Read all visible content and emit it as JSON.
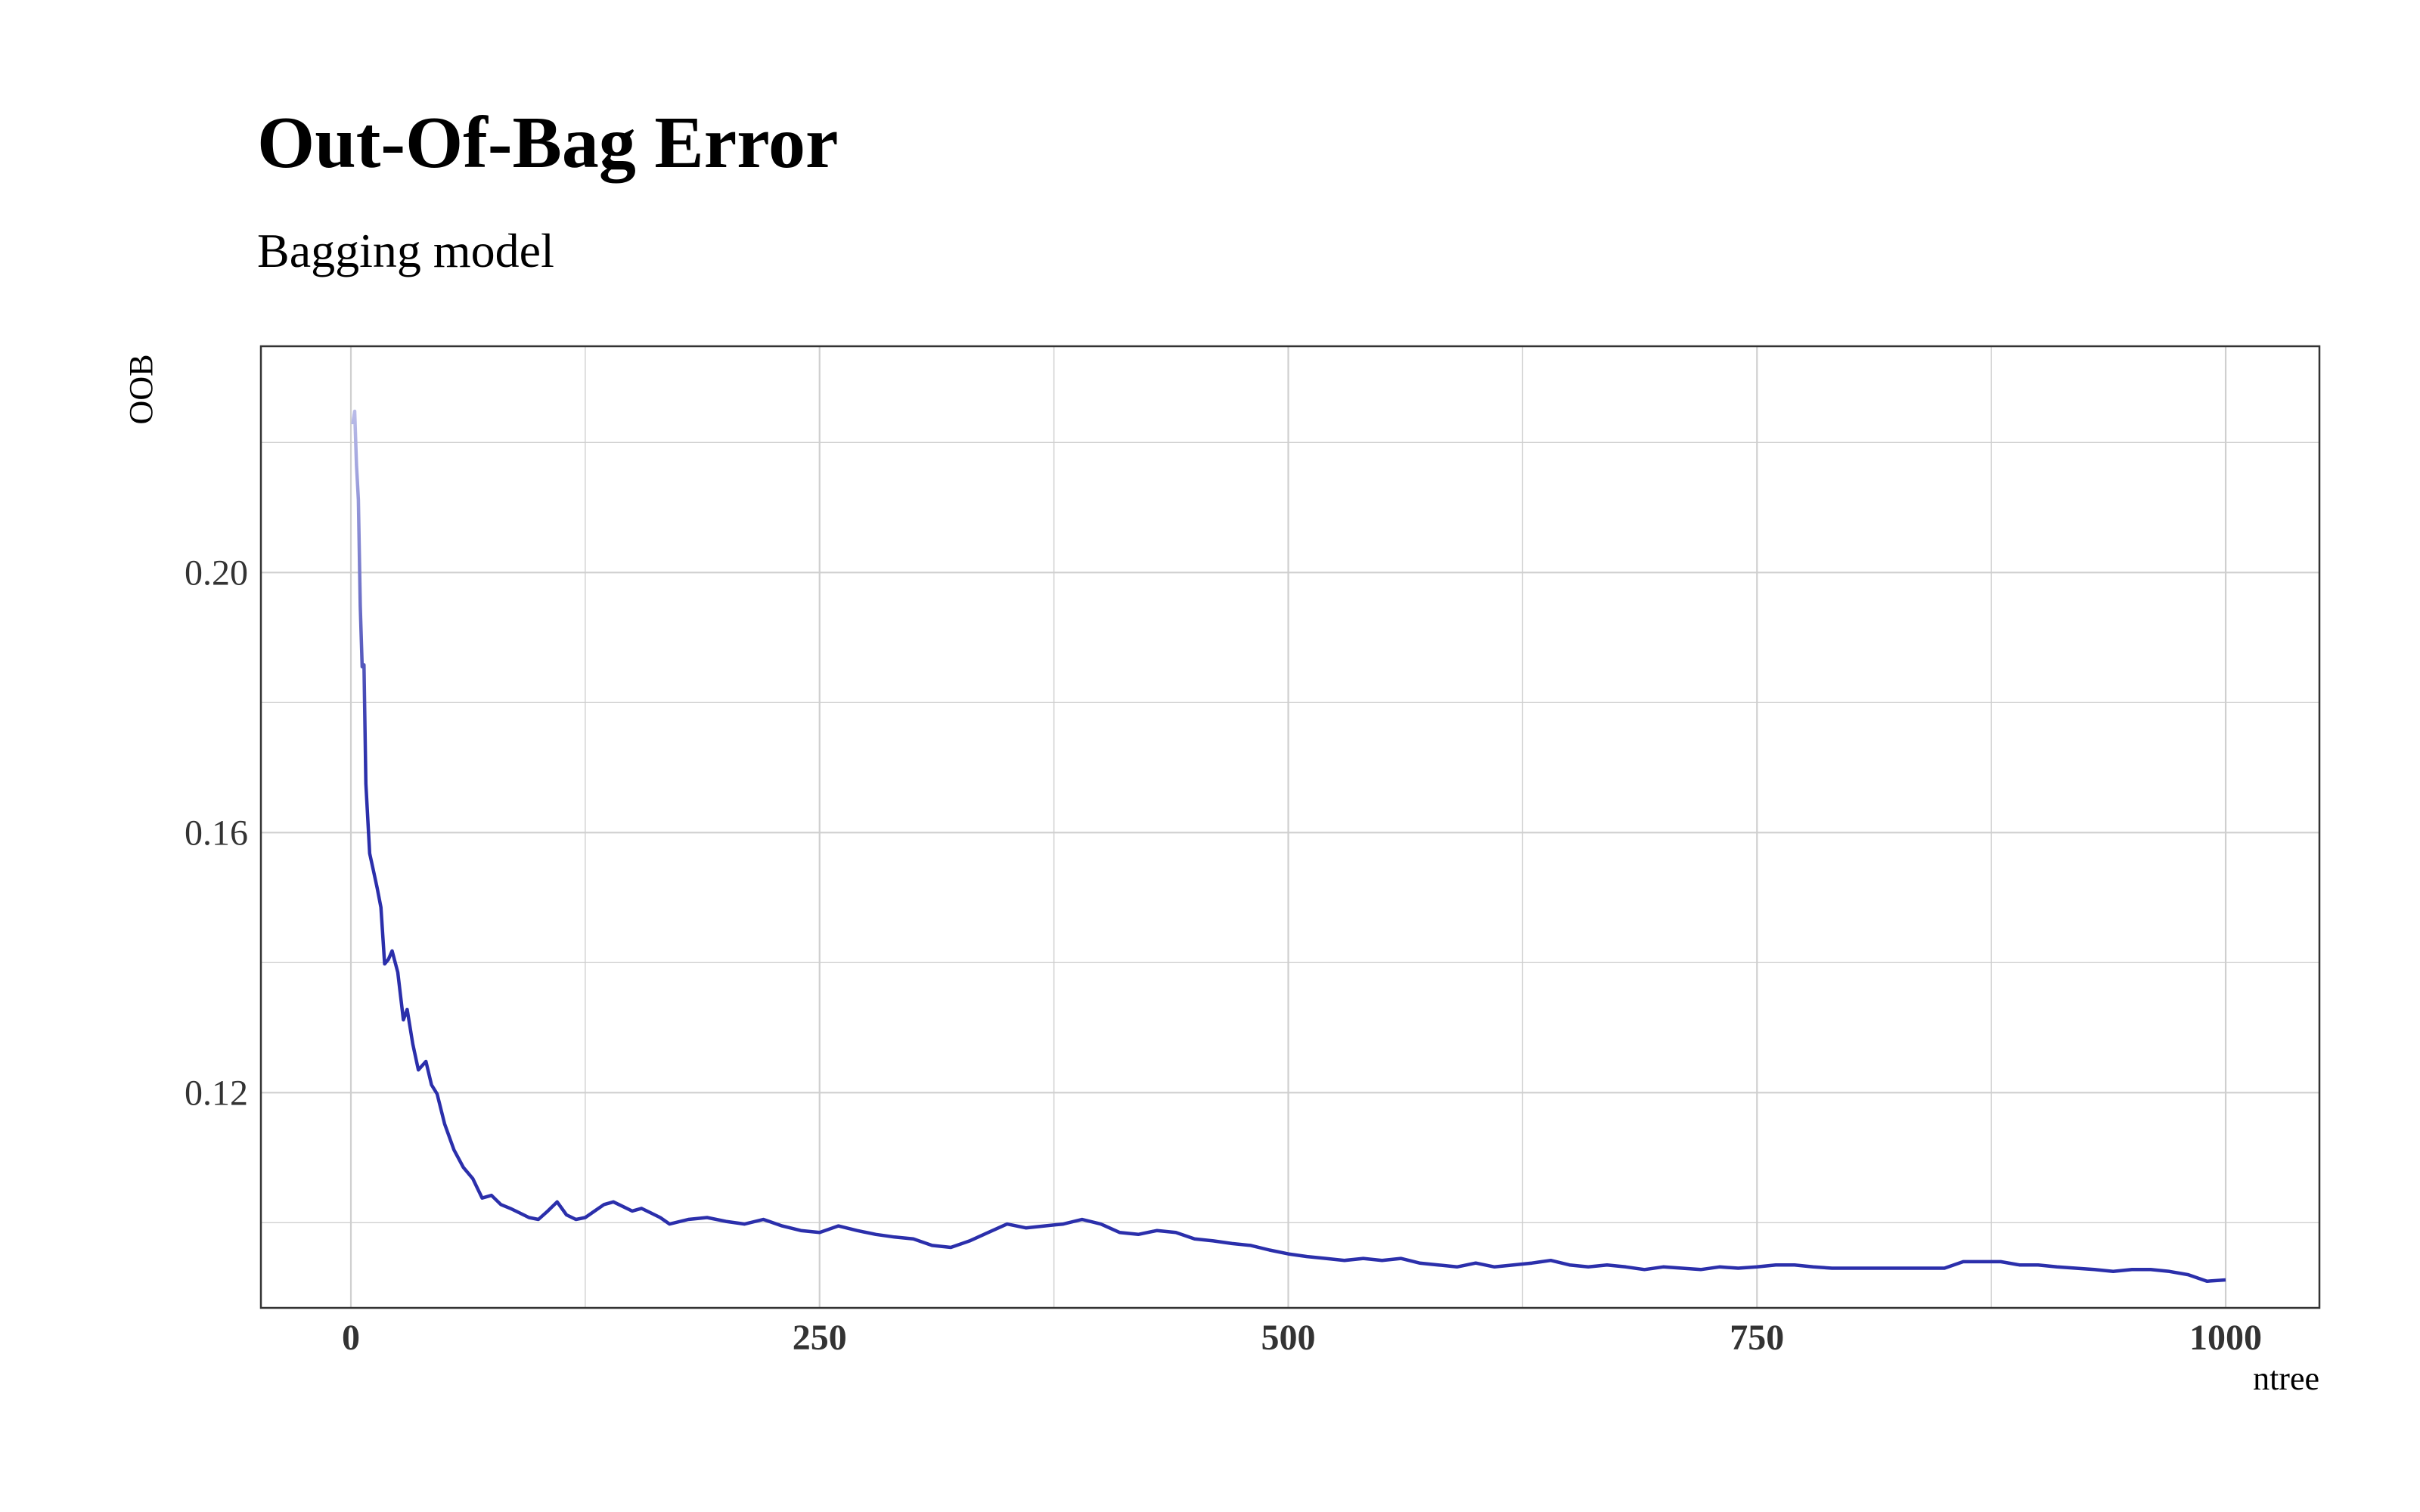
{
  "chart_data": {
    "type": "line",
    "title": "Out-Of-Bag Error",
    "subtitle": "Bagging model",
    "xlabel": "ntree",
    "ylabel": "OOB",
    "xlim": [
      -48,
      1050
    ],
    "ylim": [
      0.0869,
      0.2348
    ],
    "x_ticks": [
      0,
      250,
      500,
      750,
      1000
    ],
    "x_tick_labels": [
      "0",
      "250",
      "500",
      "750",
      "1000"
    ],
    "y_ticks": [
      0.12,
      0.16,
      0.2
    ],
    "y_tick_labels": [
      "0.12",
      "0.16",
      "0.20"
    ],
    "grid": true,
    "legend": "none",
    "series": [
      {
        "color_light": "#c7c9ee",
        "color_dark": "#2b2fab",
        "x": [
          1,
          2,
          3,
          4,
          5,
          6,
          7,
          8,
          10,
          12,
          14,
          16,
          18,
          20,
          22,
          25,
          28,
          30,
          33,
          36,
          40,
          43,
          46,
          50,
          55,
          60,
          65,
          70,
          75,
          80,
          85,
          90,
          95,
          100,
          105,
          110,
          115,
          120,
          125,
          130,
          135,
          140,
          145,
          150,
          155,
          160,
          165,
          170,
          180,
          190,
          200,
          210,
          220,
          230,
          240,
          250,
          260,
          270,
          280,
          290,
          300,
          310,
          320,
          330,
          340,
          350,
          360,
          370,
          380,
          390,
          400,
          410,
          420,
          430,
          440,
          450,
          460,
          470,
          480,
          490,
          500,
          510,
          520,
          530,
          540,
          550,
          560,
          570,
          580,
          590,
          600,
          610,
          620,
          630,
          640,
          650,
          660,
          670,
          680,
          690,
          700,
          710,
          720,
          730,
          740,
          750,
          760,
          770,
          780,
          790,
          800,
          810,
          820,
          830,
          840,
          850,
          860,
          870,
          880,
          890,
          900,
          910,
          920,
          930,
          940,
          950,
          960,
          970,
          980,
          990,
          1000
        ],
        "values": [
          0.2228,
          0.2248,
          0.2165,
          0.2112,
          0.1948,
          0.1855,
          0.1858,
          0.1675,
          0.1568,
          0.1542,
          0.1515,
          0.1485,
          0.1398,
          0.1405,
          0.1418,
          0.1385,
          0.1312,
          0.1328,
          0.1275,
          0.1235,
          0.1248,
          0.1212,
          0.1198,
          0.1152,
          0.1112,
          0.1085,
          0.1068,
          0.1038,
          0.1042,
          0.1028,
          0.1022,
          0.1015,
          0.1008,
          0.1005,
          0.1018,
          0.1032,
          0.1012,
          0.1005,
          0.1008,
          0.1018,
          0.1028,
          0.1032,
          0.1025,
          0.1018,
          0.1022,
          0.1015,
          0.1008,
          0.0998,
          0.1005,
          0.1008,
          0.1002,
          0.0998,
          0.1005,
          0.0995,
          0.0988,
          0.0985,
          0.0995,
          0.0988,
          0.0982,
          0.0978,
          0.0975,
          0.0965,
          0.0962,
          0.0972,
          0.0985,
          0.0998,
          0.0992,
          0.0995,
          0.0998,
          0.1005,
          0.0998,
          0.0985,
          0.0982,
          0.0988,
          0.0985,
          0.0975,
          0.0972,
          0.0968,
          0.0965,
          0.0958,
          0.0952,
          0.0948,
          0.0945,
          0.0942,
          0.0945,
          0.0942,
          0.0945,
          0.0938,
          0.0935,
          0.0932,
          0.0938,
          0.0932,
          0.0935,
          0.0938,
          0.0942,
          0.0935,
          0.0932,
          0.0935,
          0.0932,
          0.0928,
          0.0932,
          0.093,
          0.0928,
          0.0932,
          0.093,
          0.0932,
          0.0935,
          0.0935,
          0.0932,
          0.093,
          0.093,
          0.093,
          0.093,
          0.093,
          0.093,
          0.093,
          0.094,
          0.094,
          0.094,
          0.0935,
          0.0935,
          0.0932,
          0.093,
          0.0928,
          0.0925,
          0.0928,
          0.0928,
          0.0925,
          0.092,
          0.091,
          0.0912
        ]
      }
    ]
  }
}
